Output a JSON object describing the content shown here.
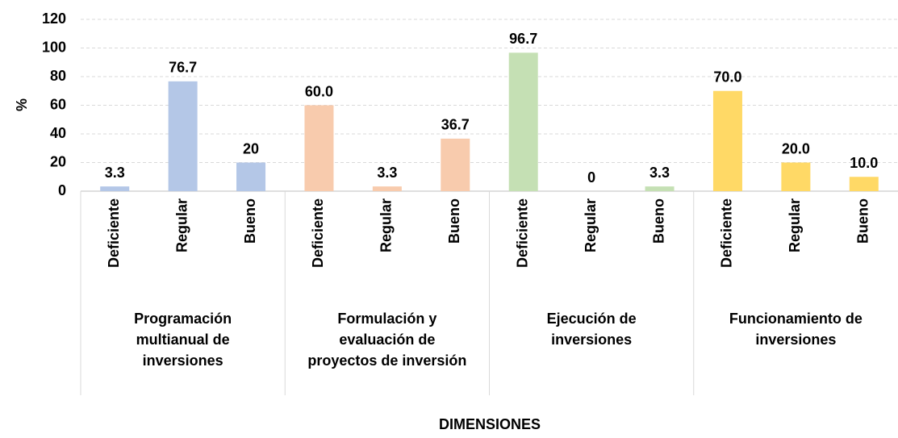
{
  "chart_data": {
    "type": "bar",
    "ylabel": "%",
    "xlabel": "DIMENSIONES",
    "ylim": [
      0,
      120
    ],
    "yticks": [
      0,
      20,
      40,
      60,
      80,
      100,
      120
    ],
    "grid": true,
    "groups": [
      {
        "name": "Programación multianual de inversiones",
        "color": "#b4c7e7",
        "categories": [
          "Deficiente",
          "Regular",
          "Bueno"
        ],
        "values": [
          3.3,
          76.7,
          20
        ],
        "value_labels": [
          "3.3",
          "76.7",
          "20"
        ]
      },
      {
        "name": "Formulación y evaluación de proyectos de inversión",
        "color": "#f8cbad",
        "categories": [
          "Deficiente",
          "Regular",
          "Bueno"
        ],
        "values": [
          60,
          3.3,
          36.7
        ],
        "value_labels": [
          "60.0",
          "3.3",
          "36.7"
        ]
      },
      {
        "name": "Ejecución de inversiones",
        "color": "#c5e0b4",
        "categories": [
          "Deficiente",
          "Regular",
          "Bueno"
        ],
        "values": [
          96.7,
          0,
          3.3
        ],
        "value_labels": [
          "96.7",
          "0",
          "3.3"
        ]
      },
      {
        "name": "Funcionamiento de inversiones",
        "color": "#ffd966",
        "categories": [
          "Deficiente",
          "Regular",
          "Bueno"
        ],
        "values": [
          70,
          20,
          10
        ],
        "value_labels": [
          "70.0",
          "20.0",
          "10.0"
        ]
      }
    ]
  }
}
